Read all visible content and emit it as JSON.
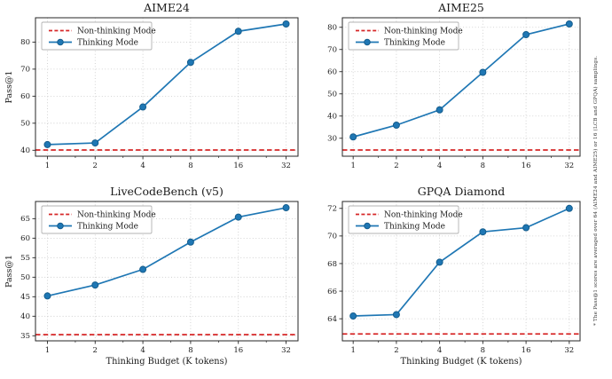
{
  "footnote": "* The Pass@1 scores are averaged over 64 (AIME24 and AIME25) or 16 (LCB and GPQA) samplings.",
  "legend": {
    "non_thinking_label": "Non-thinking Mode",
    "thinking_label": "Thinking Mode",
    "position": "upper-left"
  },
  "axes": {
    "xlabel": "Thinking Budget (K tokens)",
    "ylabel": "Pass@1",
    "x_scale": "log2",
    "x_ticks": [
      1,
      2,
      4,
      8,
      16,
      32
    ],
    "grid": true
  },
  "colors": {
    "thinking_line": "#1f77b4",
    "thinking_marker_edge": "#155d8d",
    "non_thinking_line": "#d62728",
    "grid": "#c9c9c9",
    "spine": "#262626",
    "legend_border": "#b3b3b3",
    "background": "#ffffff"
  },
  "chart_data": [
    {
      "type": "line",
      "title": "AIME24",
      "x": [
        1,
        2,
        4,
        8,
        16,
        32
      ],
      "series": [
        {
          "name": "Thinking Mode",
          "values": [
            42.1,
            42.7,
            56.0,
            72.5,
            84.0,
            86.7
          ]
        }
      ],
      "baseline": {
        "name": "Non-thinking Mode",
        "value": 40.1
      },
      "yticks": [
        40,
        50,
        60,
        70,
        80
      ],
      "ylim": [
        37.8,
        89.0
      ],
      "xlabel": "",
      "ylabel": "Pass@1"
    },
    {
      "type": "line",
      "title": "AIME25",
      "x": [
        1,
        2,
        4,
        8,
        16,
        32
      ],
      "series": [
        {
          "name": "Thinking Mode",
          "values": [
            30.6,
            35.9,
            42.8,
            59.7,
            76.7,
            81.5
          ]
        }
      ],
      "baseline": {
        "name": "Non-thinking Mode",
        "value": 24.7
      },
      "yticks": [
        30,
        40,
        50,
        60,
        70,
        80
      ],
      "ylim": [
        21.9,
        84.3
      ],
      "xlabel": "",
      "ylabel": ""
    },
    {
      "type": "line",
      "title": "LiveCodeBench (v5)",
      "x": [
        1,
        2,
        4,
        8,
        16,
        32
      ],
      "series": [
        {
          "name": "Thinking Mode",
          "values": [
            45.2,
            48.0,
            52.0,
            59.0,
            65.4,
            67.8
          ]
        }
      ],
      "baseline": {
        "name": "Non-thinking Mode",
        "value": 35.3
      },
      "yticks": [
        35,
        40,
        45,
        50,
        55,
        60,
        65
      ],
      "ylim": [
        33.7,
        69.4
      ],
      "xlabel": "Thinking Budget (K tokens)",
      "ylabel": "Pass@1"
    },
    {
      "type": "line",
      "title": "GPQA Diamond",
      "x": [
        1,
        2,
        4,
        8,
        16,
        32
      ],
      "series": [
        {
          "name": "Thinking Mode",
          "values": [
            64.2,
            64.3,
            68.1,
            70.3,
            70.6,
            72.0
          ]
        }
      ],
      "baseline": {
        "name": "Non-thinking Mode",
        "value": 62.9
      },
      "yticks": [
        64,
        66,
        68,
        70,
        72
      ],
      "ylim": [
        62.4,
        72.5
      ],
      "xlabel": "Thinking Budget (K tokens)",
      "ylabel": ""
    }
  ]
}
